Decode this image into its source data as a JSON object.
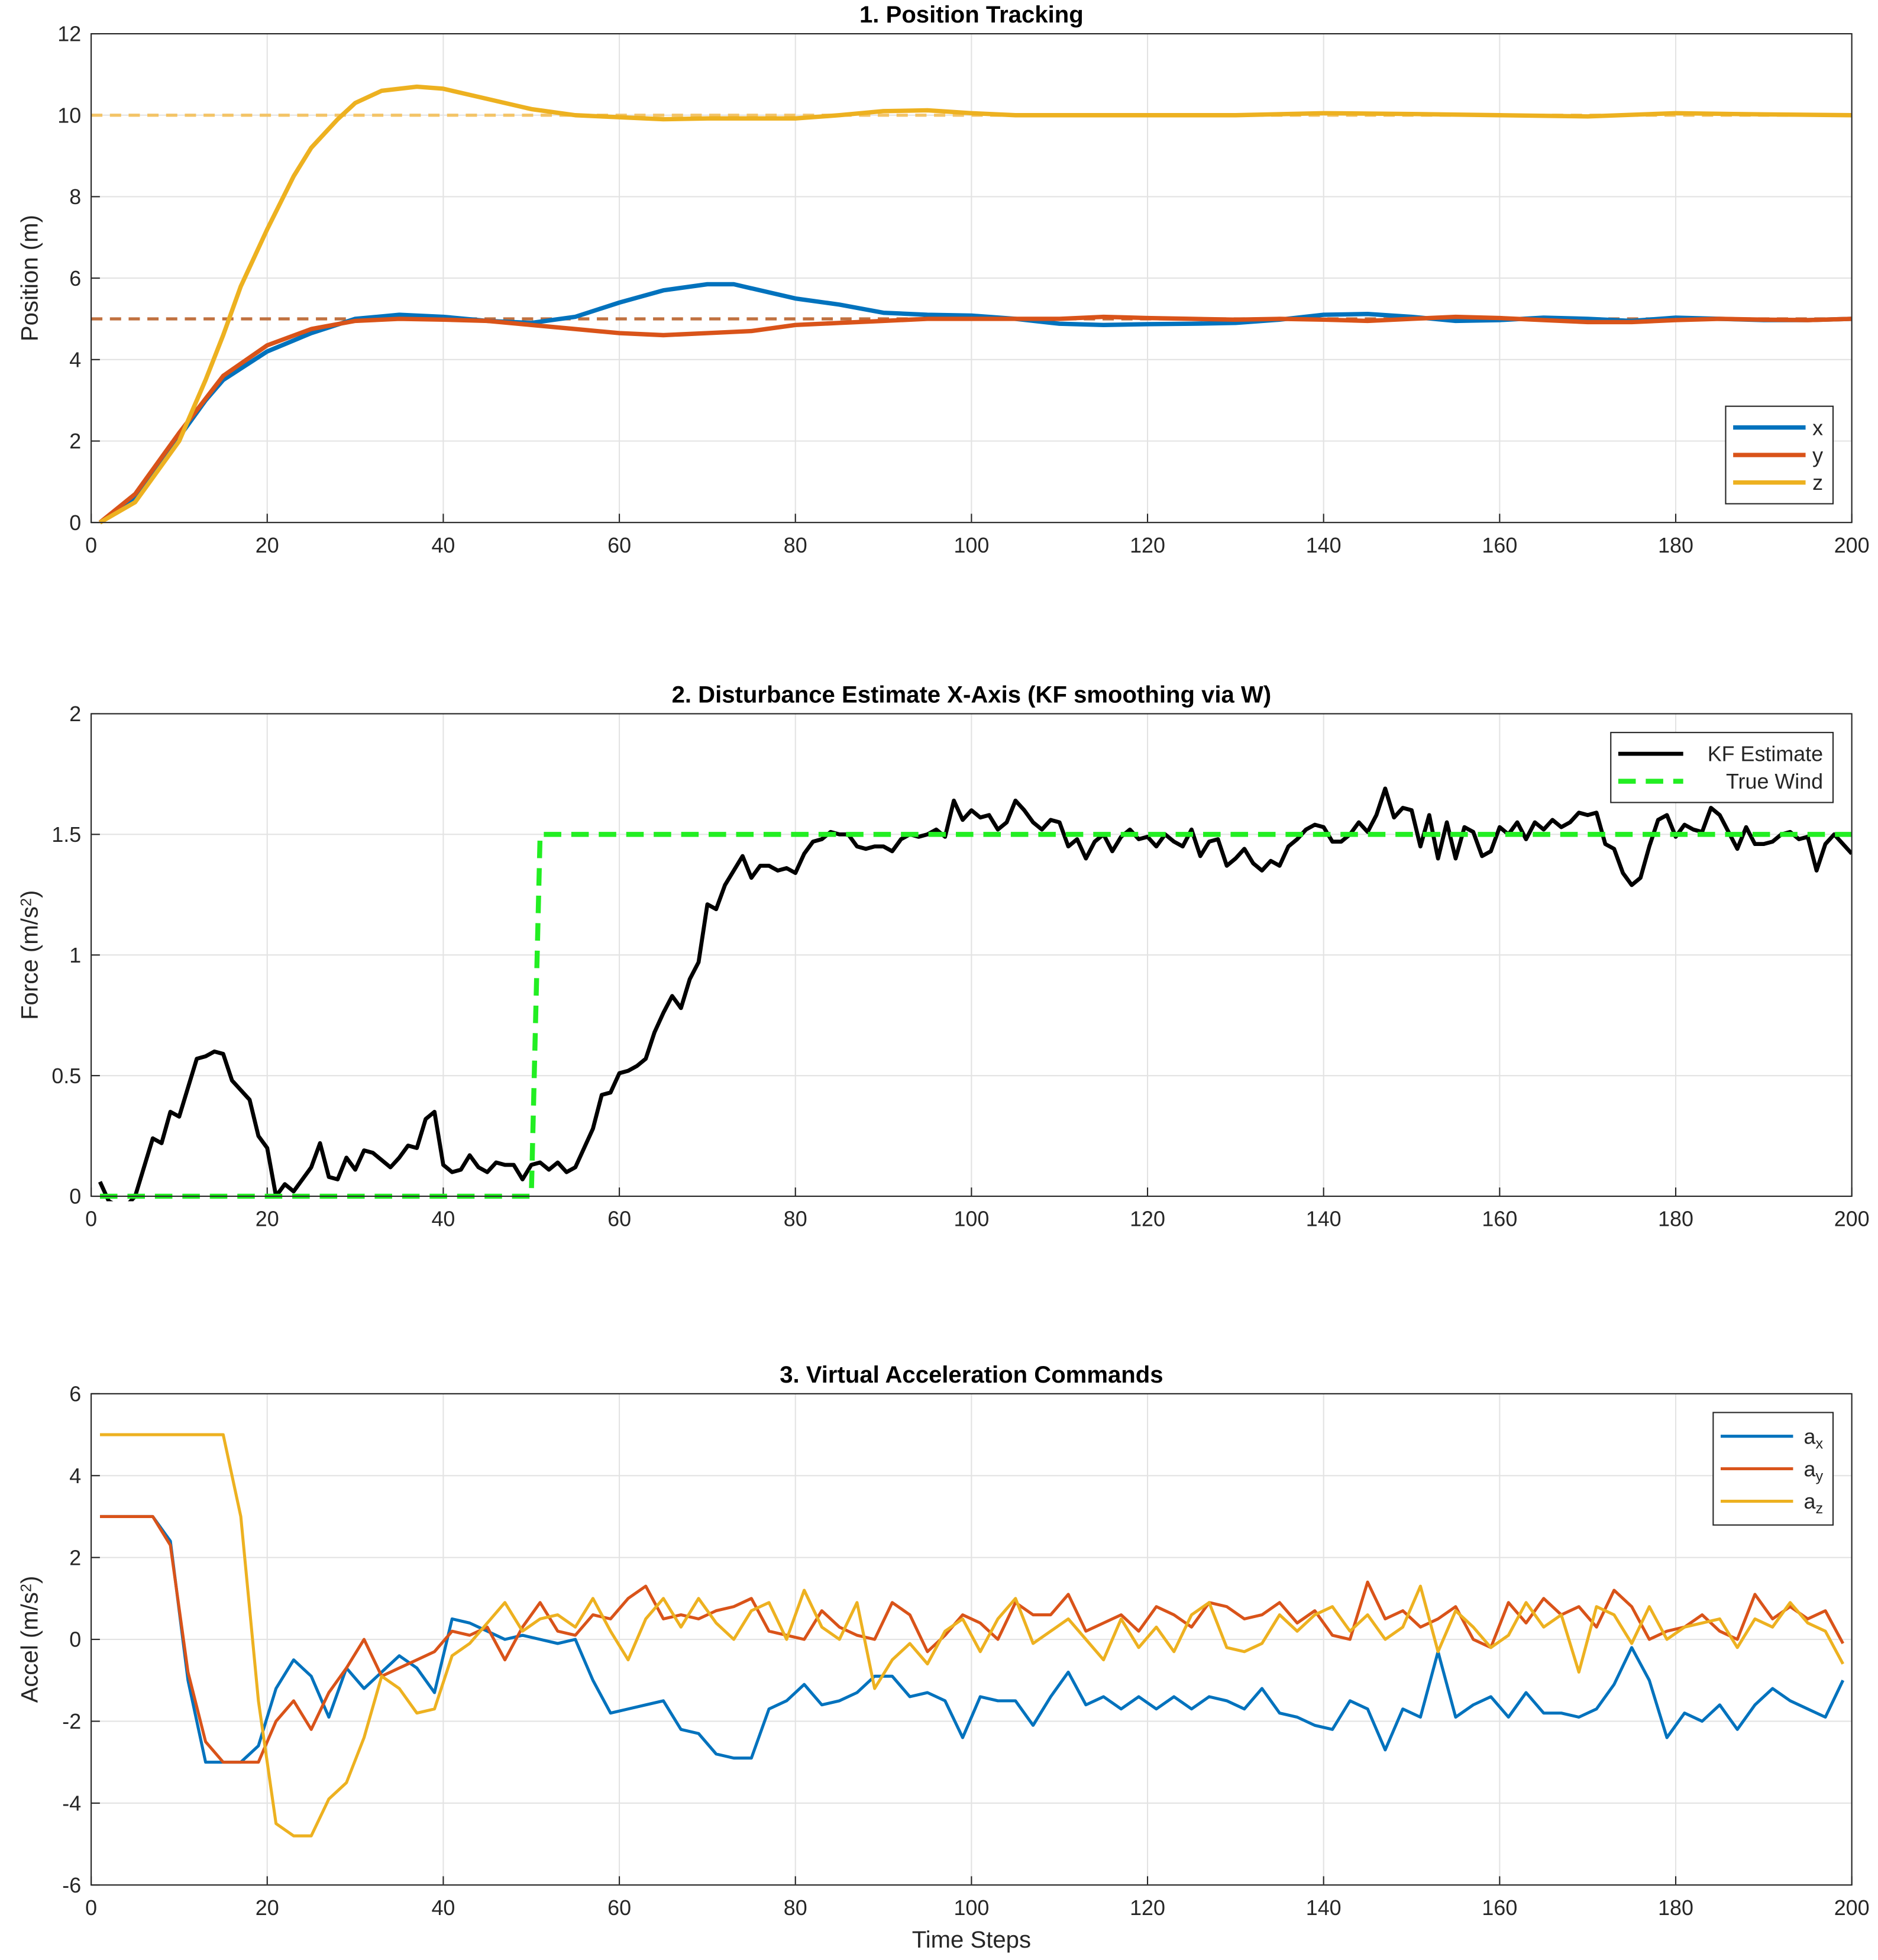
{
  "chart_data": [
    {
      "type": "line",
      "title": "1. Position Tracking",
      "ylabel": "Position (m)",
      "xlim": [
        0,
        200
      ],
      "xticks": [
        0,
        20,
        40,
        60,
        80,
        100,
        120,
        140,
        160,
        180,
        200
      ],
      "ylim": [
        0,
        12
      ],
      "yticks": [
        0,
        2,
        4,
        6,
        8,
        10,
        12
      ],
      "grid": true,
      "legend": "lower right",
      "references": [
        {
          "value": 5,
          "color": "#c0703f"
        },
        {
          "value": 10,
          "color": "#f3c467"
        }
      ],
      "series": [
        {
          "name": "x",
          "color": "#0072BD",
          "x": [
            1,
            5,
            10,
            13,
            15,
            20,
            25,
            30,
            35,
            40,
            45,
            50,
            55,
            60,
            65,
            70,
            73,
            75,
            80,
            85,
            90,
            95,
            100,
            105,
            110,
            115,
            120,
            125,
            130,
            135,
            140,
            145,
            150,
            155,
            160,
            165,
            170,
            175,
            180,
            185,
            190,
            195,
            200
          ],
          "values": [
            0,
            0.6,
            2.1,
            3.0,
            3.5,
            4.2,
            4.65,
            5.0,
            5.1,
            5.05,
            4.95,
            4.9,
            5.05,
            5.4,
            5.7,
            5.85,
            5.85,
            5.75,
            5.5,
            5.35,
            5.15,
            5.1,
            5.08,
            5.0,
            4.88,
            4.85,
            4.87,
            4.88,
            4.9,
            4.98,
            5.1,
            5.12,
            5.05,
            4.95,
            4.97,
            5.03,
            5.0,
            4.95,
            5.03,
            5.0,
            4.97,
            4.97,
            5.0
          ]
        },
        {
          "name": "y",
          "color": "#D95319",
          "x": [
            1,
            5,
            10,
            15,
            20,
            25,
            30,
            35,
            40,
            45,
            50,
            55,
            60,
            65,
            70,
            75,
            80,
            85,
            90,
            95,
            100,
            105,
            110,
            115,
            120,
            125,
            130,
            135,
            140,
            145,
            150,
            155,
            160,
            165,
            170,
            175,
            180,
            185,
            190,
            195,
            200
          ],
          "values": [
            0,
            0.7,
            2.2,
            3.6,
            4.35,
            4.75,
            4.95,
            5.0,
            4.98,
            4.95,
            4.85,
            4.75,
            4.65,
            4.6,
            4.65,
            4.7,
            4.85,
            4.9,
            4.95,
            5.0,
            5.0,
            5.0,
            5.0,
            5.05,
            5.02,
            5.0,
            4.98,
            5.0,
            4.98,
            4.95,
            5.0,
            5.05,
            5.02,
            4.97,
            4.92,
            4.92,
            4.97,
            5.0,
            4.98,
            4.97,
            5.0
          ]
        },
        {
          "name": "z",
          "color": "#EDB120",
          "x": [
            1,
            5,
            10,
            13,
            15,
            17,
            20,
            23,
            25,
            28,
            30,
            33,
            37,
            40,
            45,
            50,
            55,
            60,
            65,
            70,
            75,
            80,
            85,
            90,
            95,
            100,
            105,
            110,
            120,
            130,
            140,
            150,
            160,
            170,
            180,
            190,
            200
          ],
          "values": [
            0,
            0.5,
            2.0,
            3.5,
            4.6,
            5.8,
            7.2,
            8.5,
            9.2,
            9.9,
            10.3,
            10.6,
            10.7,
            10.65,
            10.4,
            10.15,
            10.0,
            9.95,
            9.9,
            9.92,
            9.92,
            9.92,
            10.0,
            10.1,
            10.12,
            10.05,
            10.0,
            10.0,
            10.0,
            10.0,
            10.05,
            10.03,
            10.0,
            9.97,
            10.05,
            10.02,
            10.0
          ]
        }
      ]
    },
    {
      "type": "line",
      "title": "2. Disturbance Estimate X-Axis (KF smoothing via W)",
      "ylabel": "Force (m/s^2)",
      "xlim": [
        0,
        200
      ],
      "xticks": [
        0,
        20,
        40,
        60,
        80,
        100,
        120,
        140,
        160,
        180,
        200
      ],
      "ylim": [
        0,
        2
      ],
      "yticks": [
        0,
        0.5,
        1,
        1.5,
        2
      ],
      "grid": true,
      "legend": "upper right",
      "x": [
        1,
        2,
        3,
        4,
        5,
        6,
        7,
        8,
        9,
        10,
        11,
        12,
        13,
        14,
        15,
        16,
        17,
        18,
        19,
        20,
        21,
        22,
        23,
        24,
        25,
        26,
        27,
        28,
        29,
        30,
        31,
        32,
        33,
        34,
        35,
        36,
        37,
        38,
        39,
        40,
        41,
        42,
        43,
        44,
        45,
        46,
        47,
        48,
        49,
        50,
        51,
        52,
        53,
        54,
        55,
        56,
        57,
        58,
        59,
        60,
        61,
        62,
        63,
        64,
        65,
        66,
        67,
        68,
        69,
        70,
        71,
        72,
        73,
        74,
        75,
        76,
        77,
        78,
        79,
        80,
        81,
        82,
        83,
        84,
        85,
        86,
        87,
        88,
        89,
        90,
        91,
        92,
        93,
        94,
        95,
        96,
        97,
        98,
        99,
        100,
        101,
        102,
        103,
        104,
        105,
        106,
        107,
        108,
        109,
        110,
        111,
        112,
        113,
        114,
        115,
        116,
        117,
        118,
        119,
        120,
        121,
        122,
        123,
        124,
        125,
        126,
        127,
        128,
        129,
        130,
        131,
        132,
        133,
        134,
        135,
        136,
        137,
        138,
        139,
        140,
        141,
        142,
        143,
        144,
        145,
        146,
        147,
        148,
        149,
        150,
        151,
        152,
        153,
        154,
        155,
        156,
        157,
        158,
        159,
        160,
        161,
        162,
        163,
        164,
        165,
        166,
        167,
        168,
        169,
        170,
        171,
        172,
        173,
        174,
        175,
        176,
        177,
        178,
        179,
        180,
        181,
        182,
        183,
        184,
        185,
        186,
        187,
        188,
        189,
        190,
        191,
        192,
        193,
        194,
        195,
        196,
        197,
        198,
        199,
        200
      ],
      "series": [
        {
          "name": "KF Estimate",
          "color": "#000000",
          "values": [
            0.06,
            -0.02,
            -0.04,
            -0.04,
            0.0,
            0.12,
            0.24,
            0.22,
            0.35,
            0.33,
            0.45,
            0.57,
            0.58,
            0.6,
            0.59,
            0.48,
            0.44,
            0.4,
            0.25,
            0.2,
            0.0,
            0.05,
            0.02,
            0.07,
            0.12,
            0.22,
            0.08,
            0.07,
            0.16,
            0.11,
            0.19,
            0.18,
            0.15,
            0.12,
            0.16,
            0.21,
            0.2,
            0.32,
            0.35,
            0.13,
            0.1,
            0.11,
            0.17,
            0.12,
            0.1,
            0.14,
            0.13,
            0.13,
            0.07,
            0.13,
            0.14,
            0.11,
            0.14,
            0.1,
            0.12,
            0.2,
            0.28,
            0.42,
            0.43,
            0.51,
            0.52,
            0.54,
            0.57,
            0.68,
            0.76,
            0.83,
            0.78,
            0.9,
            0.97,
            1.21,
            1.19,
            1.29,
            1.35,
            1.41,
            1.32,
            1.37,
            1.37,
            1.35,
            1.36,
            1.34,
            1.42,
            1.47,
            1.48,
            1.51,
            1.5,
            1.5,
            1.45,
            1.44,
            1.45,
            1.45,
            1.43,
            1.48,
            1.5,
            1.49,
            1.5,
            1.52,
            1.49,
            1.64,
            1.56,
            1.6,
            1.57,
            1.58,
            1.52,
            1.55,
            1.64,
            1.6,
            1.55,
            1.52,
            1.56,
            1.55,
            1.45,
            1.48,
            1.4,
            1.47,
            1.5,
            1.43,
            1.49,
            1.52,
            1.48,
            1.49,
            1.45,
            1.5,
            1.47,
            1.45,
            1.52,
            1.41,
            1.47,
            1.48,
            1.37,
            1.4,
            1.44,
            1.38,
            1.35,
            1.39,
            1.37,
            1.45,
            1.48,
            1.52,
            1.54,
            1.53,
            1.47,
            1.47,
            1.5,
            1.55,
            1.51,
            1.58,
            1.69,
            1.57,
            1.61,
            1.6,
            1.45,
            1.58,
            1.4,
            1.55,
            1.4,
            1.53,
            1.51,
            1.41,
            1.43,
            1.53,
            1.5,
            1.55,
            1.48,
            1.55,
            1.52,
            1.56,
            1.53,
            1.55,
            1.59,
            1.58,
            1.59,
            1.46,
            1.44,
            1.34,
            1.29,
            1.32,
            1.45,
            1.56,
            1.58,
            1.49,
            1.54,
            1.52,
            1.51,
            1.61,
            1.58,
            1.51,
            1.44,
            1.53,
            1.46,
            1.46,
            1.47,
            1.5,
            1.51,
            1.48,
            1.49,
            1.35,
            1.46,
            1.5,
            1.46,
            1.42
          ]
        },
        {
          "name": "True Wind",
          "color": "#22ee22",
          "dash": true,
          "x": [
            1,
            50,
            51,
            200
          ],
          "values": [
            0,
            0,
            1.5,
            1.5
          ]
        }
      ]
    },
    {
      "type": "line",
      "title": "3. Virtual Acceleration Commands",
      "ylabel": "Accel (m/s^2)",
      "xlabel": "Time Steps",
      "xlim": [
        0,
        200
      ],
      "xticks": [
        0,
        20,
        40,
        60,
        80,
        100,
        120,
        140,
        160,
        180,
        200
      ],
      "ylim": [
        -6,
        6
      ],
      "yticks": [
        -6,
        -4,
        -2,
        0,
        2,
        4,
        6
      ],
      "grid": true,
      "legend": "upper right",
      "x": [
        1,
        3,
        5,
        7,
        9,
        11,
        13,
        15,
        17,
        19,
        21,
        23,
        25,
        27,
        29,
        31,
        33,
        35,
        37,
        39,
        41,
        43,
        45,
        47,
        49,
        51,
        53,
        55,
        57,
        59,
        61,
        63,
        65,
        67,
        69,
        71,
        73,
        75,
        77,
        79,
        81,
        83,
        85,
        87,
        89,
        91,
        93,
        95,
        97,
        99,
        101,
        103,
        105,
        107,
        109,
        111,
        113,
        115,
        117,
        119,
        121,
        123,
        125,
        127,
        129,
        131,
        133,
        135,
        137,
        139,
        141,
        143,
        145,
        147,
        149,
        151,
        153,
        155,
        157,
        159,
        161,
        163,
        165,
        167,
        169,
        171,
        173,
        175,
        177,
        179,
        181,
        183,
        185,
        187,
        189,
        191,
        193,
        195,
        197,
        199
      ],
      "series": [
        {
          "name": "a_x",
          "color": "#0072BD",
          "values": [
            3,
            3,
            3,
            3,
            2.4,
            -1,
            -3,
            -3,
            -3,
            -2.6,
            -1.2,
            -0.5,
            -0.9,
            -1.9,
            -0.7,
            -1.2,
            -0.8,
            -0.4,
            -0.7,
            -1.3,
            0.5,
            0.4,
            0.2,
            0.0,
            0.1,
            0.0,
            -0.1,
            0.0,
            -1.0,
            -1.8,
            -1.7,
            -1.6,
            -1.5,
            -2.2,
            -2.3,
            -2.8,
            -2.9,
            -2.9,
            -1.7,
            -1.5,
            -1.1,
            -1.6,
            -1.5,
            -1.3,
            -0.9,
            -0.9,
            -1.4,
            -1.3,
            -1.5,
            -2.4,
            -1.4,
            -1.5,
            -1.5,
            -2.1,
            -1.4,
            -0.8,
            -1.6,
            -1.4,
            -1.7,
            -1.4,
            -1.7,
            -1.4,
            -1.7,
            -1.4,
            -1.5,
            -1.7,
            -1.2,
            -1.8,
            -1.9,
            -2.1,
            -2.2,
            -1.5,
            -1.7,
            -2.7,
            -1.7,
            -1.9,
            -0.3,
            -1.9,
            -1.6,
            -1.4,
            -1.9,
            -1.3,
            -1.8,
            -1.8,
            -1.9,
            -1.7,
            -1.1,
            -0.2,
            -1.0,
            -2.4,
            -1.8,
            -2.0,
            -1.6,
            -2.2,
            -1.6,
            -1.2,
            -1.5,
            -1.7,
            -1.9,
            -1.0
          ]
        },
        {
          "name": "a_y",
          "color": "#D95319",
          "values": [
            3,
            3,
            3,
            3,
            2.3,
            -0.8,
            -2.5,
            -3,
            -3,
            -3,
            -2.0,
            -1.5,
            -2.2,
            -1.3,
            -0.7,
            0.0,
            -0.9,
            -0.7,
            -0.5,
            -0.3,
            0.2,
            0.1,
            0.3,
            -0.5,
            0.3,
            0.9,
            0.2,
            0.1,
            0.6,
            0.5,
            1.0,
            1.3,
            0.5,
            0.6,
            0.5,
            0.7,
            0.8,
            1.0,
            0.2,
            0.1,
            0.0,
            0.7,
            0.3,
            0.1,
            0.0,
            0.9,
            0.6,
            -0.3,
            0.1,
            0.6,
            0.4,
            0.0,
            0.9,
            0.6,
            0.6,
            1.1,
            0.2,
            0.4,
            0.6,
            0.2,
            0.8,
            0.6,
            0.3,
            0.9,
            0.8,
            0.5,
            0.6,
            0.9,
            0.4,
            0.7,
            0.1,
            0.0,
            1.4,
            0.5,
            0.7,
            0.3,
            0.5,
            0.8,
            0.0,
            -0.2,
            0.9,
            0.4,
            1.0,
            0.6,
            0.8,
            0.3,
            1.2,
            0.8,
            0.0,
            0.2,
            0.3,
            0.6,
            0.2,
            0.0,
            1.1,
            0.5,
            0.8,
            0.5,
            0.7,
            -0.1
          ]
        },
        {
          "name": "a_z",
          "color": "#EDB120",
          "values": [
            5,
            5,
            5,
            5,
            5,
            5,
            5,
            5,
            3,
            -1.5,
            -4.5,
            -4.8,
            -4.8,
            -3.9,
            -3.5,
            -2.4,
            -0.9,
            -1.2,
            -1.8,
            -1.7,
            -0.4,
            -0.1,
            0.4,
            0.9,
            0.2,
            0.5,
            0.6,
            0.3,
            1.0,
            0.2,
            -0.5,
            0.5,
            1.0,
            0.3,
            1.0,
            0.4,
            0.0,
            0.7,
            0.9,
            0.0,
            1.2,
            0.3,
            0.0,
            0.9,
            -1.2,
            -0.5,
            -0.1,
            -0.6,
            0.2,
            0.5,
            -0.3,
            0.5,
            1.0,
            -0.1,
            0.2,
            0.5,
            0.0,
            -0.5,
            0.5,
            -0.2,
            0.3,
            -0.3,
            0.6,
            0.9,
            -0.2,
            -0.3,
            -0.1,
            0.6,
            0.2,
            0.6,
            0.8,
            0.2,
            0.6,
            0.0,
            0.3,
            1.3,
            -0.3,
            0.7,
            0.3,
            -0.2,
            0.1,
            0.9,
            0.3,
            0.6,
            -0.8,
            0.8,
            0.6,
            -0.1,
            0.8,
            0.0,
            0.3,
            0.4,
            0.5,
            -0.2,
            0.5,
            0.3,
            0.9,
            0.4,
            0.2,
            -0.6
          ]
        }
      ]
    }
  ]
}
